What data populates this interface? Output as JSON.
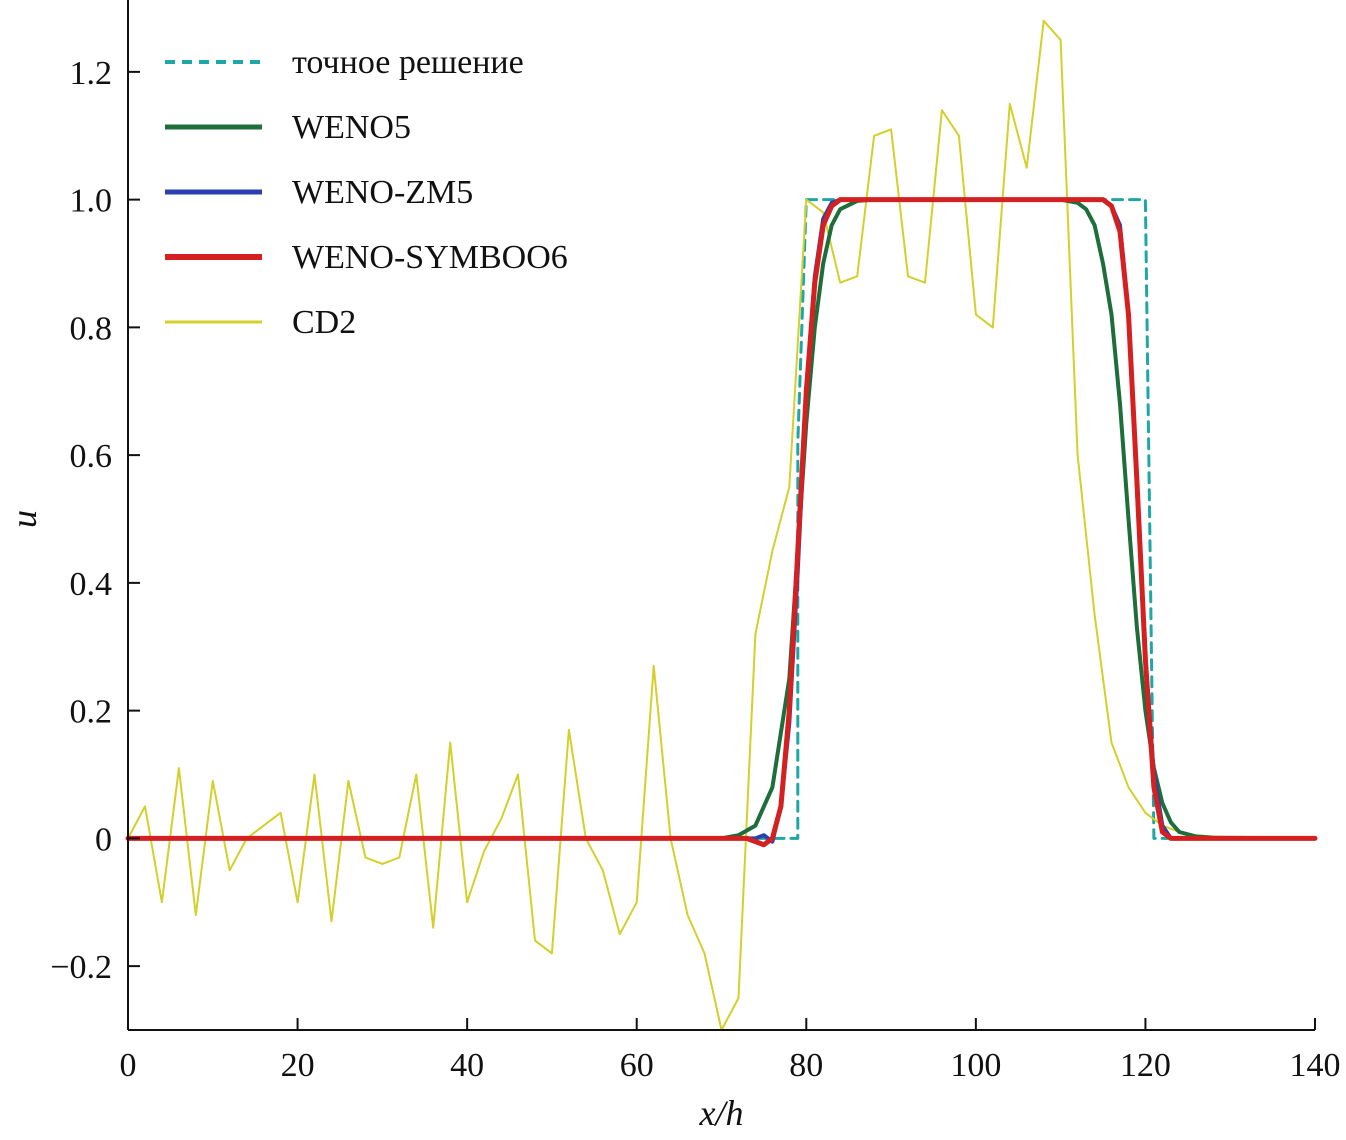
{
  "chart_data": {
    "type": "line",
    "xlabel": "x/h",
    "ylabel": "u",
    "xlim": [
      0,
      140
    ],
    "ylim": [
      -0.3,
      1.3
    ],
    "x_ticks": [
      0,
      20,
      40,
      60,
      80,
      100,
      120,
      140
    ],
    "x_tick_labels": [
      "0",
      "20",
      "40",
      "60",
      "80",
      "100",
      "120",
      "140"
    ],
    "y_ticks": [
      -0.2,
      0,
      0.2,
      0.4,
      0.6,
      0.8,
      1.0,
      1.2
    ],
    "y_tick_labels": [
      "−0.2",
      "0",
      "0.2",
      "0.4",
      "0.6",
      "0.8",
      "1.0",
      "1.2"
    ],
    "grid": false,
    "legend_position": "top-left",
    "series": [
      {
        "name": "точное решение",
        "color": "#1fa6a6",
        "dashed": true,
        "width": 3,
        "x": [
          0,
          79,
          79,
          80,
          120,
          121,
          140
        ],
        "y": [
          0,
          0,
          0.62,
          1.0,
          1.0,
          0,
          0
        ]
      },
      {
        "name": "CD2",
        "color": "#d4cf2a",
        "dashed": false,
        "width": 2,
        "x": [
          0,
          2,
          4,
          6,
          8,
          10,
          12,
          14,
          16,
          18,
          20,
          22,
          24,
          26,
          28,
          30,
          32,
          34,
          36,
          38,
          40,
          42,
          44,
          46,
          48,
          50,
          52,
          54,
          56,
          58,
          60,
          62,
          64,
          66,
          68,
          70,
          72,
          74,
          76,
          78,
          80,
          82,
          84,
          86,
          88,
          90,
          92,
          94,
          96,
          98,
          100,
          102,
          104,
          106,
          108,
          110,
          112,
          114,
          116,
          118,
          120,
          122,
          124,
          126,
          128,
          130,
          134,
          140
        ],
        "y": [
          0,
          0.05,
          -0.1,
          0.11,
          -0.12,
          0.09,
          -0.05,
          0.0,
          0.02,
          0.04,
          -0.1,
          0.1,
          -0.13,
          0.09,
          -0.03,
          -0.04,
          -0.03,
          0.1,
          -0.14,
          0.15,
          -0.1,
          -0.02,
          0.03,
          0.1,
          -0.16,
          -0.18,
          0.17,
          0.0,
          -0.05,
          -0.15,
          -0.1,
          0.27,
          0.0,
          -0.12,
          -0.18,
          -0.3,
          -0.25,
          0.32,
          0.45,
          0.55,
          1.0,
          0.98,
          0.87,
          0.88,
          1.1,
          1.11,
          0.88,
          0.87,
          1.14,
          1.1,
          0.82,
          0.8,
          1.15,
          1.05,
          1.28,
          1.25,
          0.6,
          0.35,
          0.15,
          0.08,
          0.04,
          0.02,
          0.01,
          0.005,
          0.003,
          0.002,
          0.001,
          0.0
        ]
      },
      {
        "name": "WENO5",
        "color": "#1d6e3a",
        "dashed": false,
        "width": 4,
        "x": [
          0,
          70,
          72,
          74,
          76,
          78,
          79,
          80,
          81,
          82,
          83,
          84,
          86,
          88,
          110,
          112,
          113,
          114,
          115,
          116,
          117,
          118,
          119,
          120,
          121,
          122,
          123,
          124,
          126,
          128,
          140
        ],
        "y": [
          0,
          0,
          0.005,
          0.02,
          0.08,
          0.25,
          0.45,
          0.65,
          0.8,
          0.9,
          0.96,
          0.985,
          0.998,
          1.0,
          1.0,
          0.995,
          0.985,
          0.96,
          0.9,
          0.82,
          0.68,
          0.5,
          0.33,
          0.2,
          0.11,
          0.055,
          0.025,
          0.01,
          0.003,
          0.001,
          0
        ]
      },
      {
        "name": "WENO-ZM5",
        "color": "#2b3fb0",
        "dashed": false,
        "width": 4,
        "x": [
          0,
          74,
          75,
          76,
          77,
          78,
          79,
          80,
          81,
          82,
          83,
          84,
          115,
          116,
          117,
          118,
          119,
          120,
          121,
          122,
          123,
          140
        ],
        "y": [
          0,
          0,
          0.005,
          -0.005,
          0.05,
          0.18,
          0.42,
          0.7,
          0.88,
          0.97,
          0.995,
          1.0,
          1.0,
          0.99,
          0.96,
          0.82,
          0.55,
          0.28,
          0.1,
          0.02,
          0.0,
          0
        ]
      },
      {
        "name": "WENO-SYMBOO6",
        "color": "#d42020",
        "dashed": false,
        "width": 5,
        "x": [
          0,
          73,
          75,
          76,
          77,
          78,
          79,
          80,
          81,
          82,
          83,
          84,
          115,
          116,
          117,
          118,
          119,
          120,
          121,
          122,
          123,
          140
        ],
        "y": [
          0,
          0,
          -0.01,
          0.0,
          0.05,
          0.2,
          0.45,
          0.7,
          0.87,
          0.96,
          0.99,
          1.0,
          1.0,
          0.99,
          0.95,
          0.82,
          0.56,
          0.28,
          0.08,
          0.01,
          0.0,
          0
        ]
      }
    ],
    "legend_order": [
      "точное решение",
      "WENO5",
      "WENO-ZM5",
      "WENO-SYMBOO6",
      "CD2"
    ]
  }
}
